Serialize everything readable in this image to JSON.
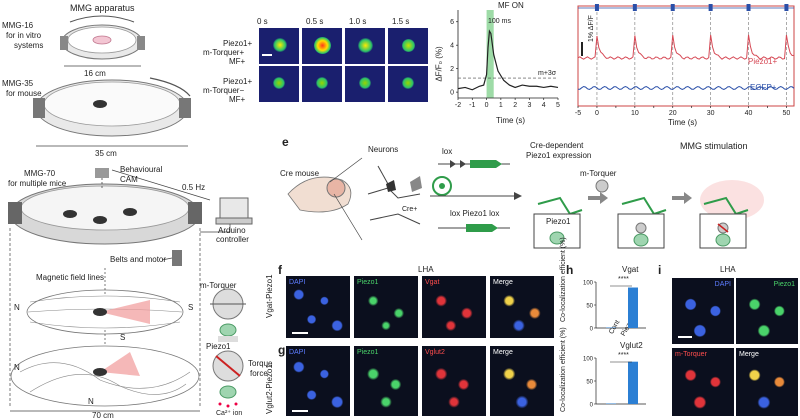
{
  "apparatus": {
    "mmg_apparatus": "MMG apparatus",
    "mmg16": "MMG-16",
    "mmg16_desc_1": "for in vitro",
    "mmg16_desc_2": "systems",
    "mmg16_size": "16 cm",
    "mmg35": "MMG-35",
    "mmg35_desc": "for mouse",
    "mmg35_size": "35 cm",
    "mmg70": "MMG-70",
    "mmg70_desc": "for multiple mice",
    "camera": "Behavioural",
    "camera_2": "CAM",
    "freq": "0.5 Hz",
    "arduino_1": "Arduino",
    "arduino_2": "controller",
    "belts": "Belts and motor",
    "field_lines": "Magnetic field lines",
    "n": "N",
    "s": "S",
    "mmg70_size": "70 cm",
    "mtorquer": "m-Torquer",
    "piezo1": "Piezo1",
    "torque": "Torque",
    "force": "force",
    "ca_ion": "Ca²⁺ ion"
  },
  "imaging": {
    "timepoints": [
      "0 s",
      "0.5 s",
      "1.0 s",
      "1.5 s"
    ],
    "row1_label_1": "Piezo1+",
    "row1_label_2": "m-Torquer+",
    "row1_label_3": "MF+",
    "row2_label_1": "Piezo1+",
    "row2_label_2": "m-Torquer−",
    "row2_label_3": "MF+"
  },
  "trace_chart": {
    "mf_on": "MF ON",
    "duration": "100 ms",
    "threshold": "m+3σ"
  },
  "long_trace": {
    "scale": "1% ΔF/F",
    "piezo": "Piezo1+",
    "egfp": "EGFP+"
  },
  "panel_e": {
    "letter": "e",
    "cre_mouse": "Cre mouse",
    "neurons": "Neurons",
    "cre_plus": "Cre+",
    "lox": "lox",
    "lox_piezo": "lox Piezo1 lox",
    "cre_dep_1": "Cre-dependent",
    "cre_dep_2": "Piezo1 expression",
    "mtorquer": "m-Torquer",
    "mmg_stim": "MMG stimulation",
    "piezo1": "Piezo1"
  },
  "panel_f": {
    "letter": "f",
    "region": "LHA",
    "row_label": "Vgat-Piezo1",
    "channels": [
      "DAPI",
      "Piezo1",
      "Vgat",
      "Merge"
    ]
  },
  "panel_g": {
    "letter": "g",
    "row_label": "Vglut2-Piezo1",
    "channels": [
      "DAPI",
      "Piezo1",
      "Vglut2",
      "Merge"
    ]
  },
  "panel_h": {
    "letter": "h",
    "title_1": "Vgat",
    "title_2": "Vglut2",
    "ylabel": "Co-localization efficient (%)",
    "sig": "****",
    "xt1": "Cont",
    "xt2": "Piezo1"
  },
  "panel_i": {
    "letter": "i",
    "region": "LHA",
    "channels": [
      "DAPI",
      "Piezo1",
      "m-Torquer",
      "Merge"
    ]
  },
  "chart_data": [
    {
      "type": "line",
      "x": [
        -2,
        -1.5,
        -1,
        -0.5,
        -0.2,
        0,
        0.1,
        0.2,
        0.3,
        0.5,
        0.8,
        1.2,
        1.6,
        2,
        2.5,
        3,
        3.5,
        4,
        4.5,
        5
      ],
      "series": [
        {
          "values": [
            0.3,
            0.4,
            0.2,
            0.5,
            0.6,
            1.5,
            3.8,
            5.2,
            5.0,
            3.2,
            1.8,
            1.0,
            0.6,
            0.4,
            0.6,
            0.5,
            0.5,
            0.4,
            0.5,
            0.4
          ]
        }
      ],
      "xlabel": "Time (s)",
      "ylabel": "ΔF/F₀ (%)",
      "xticks": [
        -2,
        -1,
        0,
        1,
        2,
        3,
        4,
        5
      ],
      "yticks": [
        0,
        2,
        4,
        6
      ],
      "xlim": [
        -2,
        5
      ],
      "ylim": [
        -0.5,
        7
      ]
    },
    {
      "type": "line",
      "x": [
        -5,
        0,
        10,
        20,
        30,
        40,
        50
      ],
      "series": [
        {
          "name": "Piezo1+",
          "color": "#d64a56"
        },
        {
          "name": "EGFP+",
          "color": "#2a4fa8"
        }
      ],
      "xlabel": "Time (s)",
      "xticks": [
        -5,
        0,
        5,
        10,
        15,
        20,
        25,
        30,
        35,
        40,
        45,
        50
      ],
      "stimuli": [
        0,
        10,
        20,
        30,
        40,
        50
      ]
    },
    {
      "type": "bar",
      "categories": [
        "Cont",
        "Piezo1"
      ],
      "values": [
        1,
        88
      ],
      "title": "Vgat",
      "yticks": [
        0,
        50,
        100
      ],
      "ylim": [
        0,
        100
      ]
    },
    {
      "type": "bar",
      "categories": [
        "Cont",
        "Piezo1"
      ],
      "values": [
        1,
        92
      ],
      "title": "Vglut2",
      "yticks": [
        0,
        50,
        100
      ],
      "ylim": [
        0,
        100
      ]
    }
  ]
}
